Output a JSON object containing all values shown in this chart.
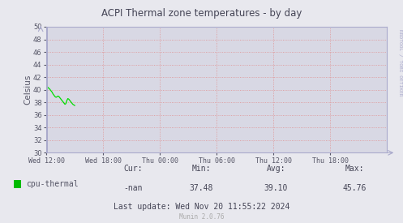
{
  "title": "ACPI Thermal zone temperatures - by day",
  "ylabel": "Celsius",
  "fig_bg_color": "#e8e8ee",
  "plot_bg_color": "#d8d8e4",
  "grid_color": "#e09090",
  "grid_style": ":",
  "line_color": "#00dd00",
  "line_width": 0.9,
  "xlim_start": 0,
  "xlim_end": 30,
  "ylim_bottom": 30,
  "ylim_top": 50,
  "yticks": [
    30,
    32,
    34,
    36,
    38,
    40,
    42,
    44,
    46,
    48,
    50
  ],
  "xtick_labels": [
    "Wed 12:00",
    "Wed 18:00",
    "Thu 00:00",
    "Thu 06:00",
    "Thu 12:00",
    "Thu 18:00"
  ],
  "xtick_positions": [
    0,
    5,
    10,
    15,
    20,
    25
  ],
  "legend_label": "cpu-thermal",
  "legend_color": "#00bb00",
  "cur_label": "Cur:",
  "cur_val": "-nan",
  "min_label": "Min:",
  "min_val": "37.48",
  "avg_label": "Avg:",
  "avg_val": "39.10",
  "max_label": "Max:",
  "max_val": "45.76",
  "last_update": "Last update: Wed Nov 20 11:55:22 2024",
  "munin_label": "Munin 2.0.76",
  "rrdtool_label": "RRDTOOL / TOBI OETIKER",
  "arrow_color": "#aaaacc",
  "axis_color": "#aaaacc",
  "tick_color": "#555566",
  "title_color": "#444455",
  "text_color": "#555566",
  "stats_color": "#444455"
}
